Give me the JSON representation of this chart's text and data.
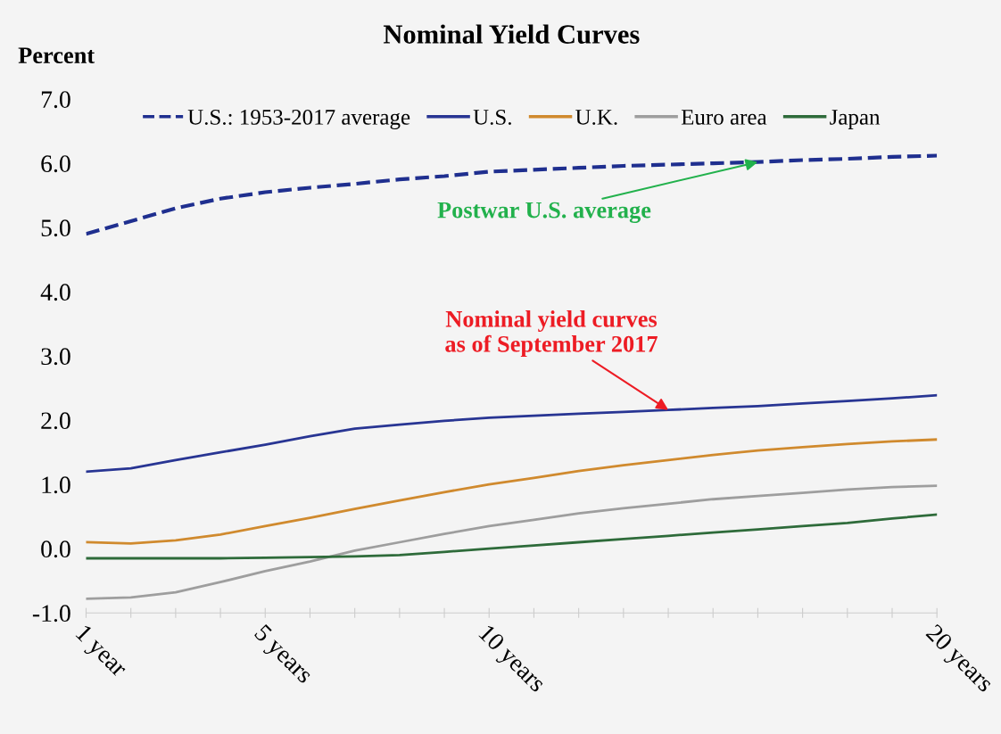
{
  "chart_data": {
    "type": "line",
    "title": "Nominal Yield Curves",
    "ylabel": "Percent",
    "x": [
      1,
      2,
      3,
      4,
      5,
      6,
      7,
      8,
      9,
      10,
      11,
      12,
      13,
      14,
      15,
      16,
      17,
      18,
      19,
      20
    ],
    "series": [
      {
        "name": "U.S.: 1953-2017 average",
        "color": "#1f2f8f",
        "line_style": "dashed",
        "values": [
          4.9,
          5.1,
          5.3,
          5.45,
          5.55,
          5.62,
          5.68,
          5.75,
          5.8,
          5.87,
          5.9,
          5.93,
          5.96,
          5.98,
          6.0,
          6.02,
          6.05,
          6.07,
          6.1,
          6.12
        ]
      },
      {
        "name": "U.S.",
        "color": "#283593",
        "values": [
          1.2,
          1.25,
          1.38,
          1.5,
          1.62,
          1.75,
          1.87,
          1.93,
          1.99,
          2.04,
          2.07,
          2.1,
          2.13,
          2.16,
          2.19,
          2.22,
          2.26,
          2.3,
          2.34,
          2.39
        ]
      },
      {
        "name": "U.K.",
        "color": "#d08a2e",
        "values": [
          0.1,
          0.08,
          0.13,
          0.22,
          0.35,
          0.48,
          0.62,
          0.75,
          0.88,
          1.0,
          1.1,
          1.21,
          1.3,
          1.38,
          1.46,
          1.53,
          1.58,
          1.63,
          1.67,
          1.7
        ]
      },
      {
        "name": "Euro area",
        "color": "#9e9e9e",
        "values": [
          -0.78,
          -0.76,
          -0.68,
          -0.52,
          -0.35,
          -0.2,
          -0.03,
          0.1,
          0.23,
          0.35,
          0.45,
          0.55,
          0.63,
          0.7,
          0.77,
          0.82,
          0.87,
          0.92,
          0.96,
          0.98
        ]
      },
      {
        "name": "Japan",
        "color": "#2e6b3a",
        "values": [
          -0.15,
          -0.15,
          -0.15,
          -0.15,
          -0.14,
          -0.13,
          -0.12,
          -0.1,
          -0.05,
          0.0,
          0.05,
          0.1,
          0.15,
          0.2,
          0.25,
          0.3,
          0.35,
          0.4,
          0.47,
          0.53
        ]
      }
    ],
    "xlim": [
      1,
      20
    ],
    "xticks": [
      {
        "value": 1,
        "label": "1 year"
      },
      {
        "value": 2,
        "label": null
      },
      {
        "value": 3,
        "label": null
      },
      {
        "value": 4,
        "label": null
      },
      {
        "value": 5,
        "label": "5 years"
      },
      {
        "value": 6,
        "label": null
      },
      {
        "value": 7,
        "label": null
      },
      {
        "value": 8,
        "label": null
      },
      {
        "value": 9,
        "label": null
      },
      {
        "value": 10,
        "label": "10 years"
      },
      {
        "value": 11,
        "label": null
      },
      {
        "value": 12,
        "label": null
      },
      {
        "value": 13,
        "label": null
      },
      {
        "value": 14,
        "label": null
      },
      {
        "value": 15,
        "label": null
      },
      {
        "value": 16,
        "label": null
      },
      {
        "value": 17,
        "label": null
      },
      {
        "value": 18,
        "label": null
      },
      {
        "value": 19,
        "label": null
      },
      {
        "value": 20,
        "label": "20 years"
      }
    ],
    "ylim": [
      -1.0,
      7.0
    ],
    "yticks": [
      {
        "value": -1,
        "label": "-1.0"
      },
      {
        "value": 0,
        "label": "0.0"
      },
      {
        "value": 1,
        "label": "1.0"
      },
      {
        "value": 2,
        "label": "2.0"
      },
      {
        "value": 3,
        "label": "3.0"
      },
      {
        "value": 4,
        "label": "4.0"
      },
      {
        "value": 5,
        "label": "5.0"
      },
      {
        "value": 6,
        "label": "6.0"
      },
      {
        "value": 7,
        "label": "7.0"
      }
    ],
    "grid": false,
    "legend": "top",
    "marker": "none",
    "annotations": [
      {
        "text": "Postwar U.S. average",
        "x": 16,
        "y": 6.02
      },
      {
        "text": "Nominal yield curves\nas of September 2017",
        "x": 14,
        "y": 2.16
      }
    ]
  }
}
